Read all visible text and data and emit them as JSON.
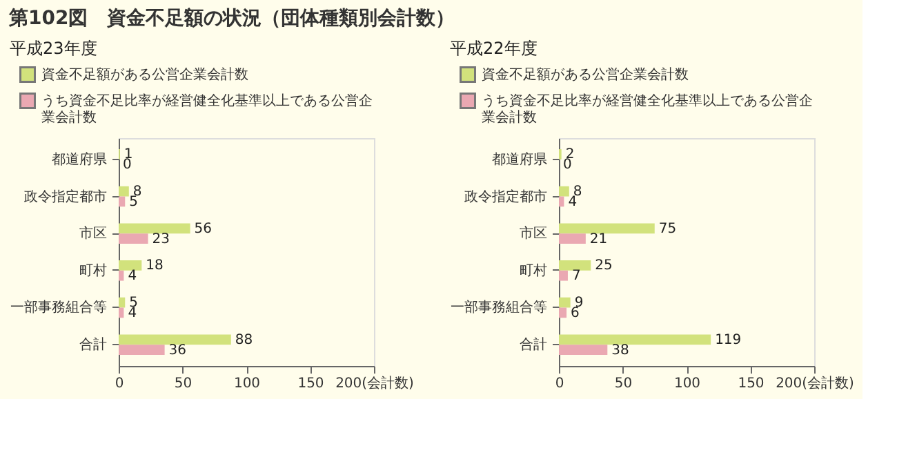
{
  "chart_data": [
    {
      "type": "bar",
      "orientation": "horizontal",
      "title": "平成23年度",
      "annotations": [
        "第102図　資金不足額の状況（団体種類別会計数）"
      ],
      "categories": [
        "都道府県",
        "政令指定都市",
        "市区",
        "町村",
        "一部事務組合等",
        "合計"
      ],
      "series": [
        {
          "name": "資金不足額がある公営企業会計数",
          "color": "#d2e27c",
          "values": [
            1,
            8,
            56,
            18,
            5,
            88
          ]
        },
        {
          "name": "うち資金不足比率が経営健全化基準以上である公営企業会計数",
          "color": "#eaa8b2",
          "values": [
            0,
            5,
            23,
            4,
            4,
            36
          ]
        }
      ],
      "xlim": [
        0,
        200
      ],
      "xticks": [
        0,
        50,
        100,
        150,
        {
          "value": 200,
          "label": "200(会計数)"
        }
      ],
      "data_labels": true,
      "legend": "top left",
      "grid": false
    },
    {
      "type": "bar",
      "orientation": "horizontal",
      "title": "平成22年度",
      "categories": [
        "都道府県",
        "政令指定都市",
        "市区",
        "町村",
        "一部事務組合等",
        "合計"
      ],
      "series": [
        {
          "name": "資金不足額がある公営企業会計数",
          "color": "#d2e27c",
          "values": [
            2,
            8,
            75,
            25,
            9,
            119
          ]
        },
        {
          "name": "うち資金不足比率が経営健全化基準以上である公営企業会計数",
          "color": "#eaa8b2",
          "values": [
            0,
            4,
            21,
            7,
            6,
            38
          ]
        }
      ],
      "xlim": [
        0,
        200
      ],
      "xticks": [
        0,
        50,
        100,
        150,
        {
          "value": 200,
          "label": "200(会計数)"
        }
      ],
      "data_labels": true,
      "legend": "top left",
      "grid": false
    }
  ]
}
